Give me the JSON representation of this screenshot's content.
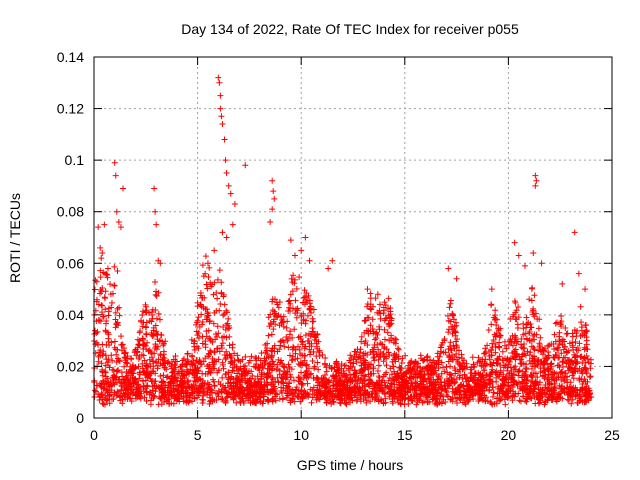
{
  "chart_data": {
    "type": "scatter",
    "title": "Day 134 of 2022, Rate Of TEC Index for receiver p055",
    "xlabel": "GPS time / hours",
    "ylabel": "ROTI / TECUs",
    "xlim": [
      0,
      25
    ],
    "ylim": [
      0,
      0.14
    ],
    "x_ticks": [
      0,
      5,
      10,
      15,
      20,
      25
    ],
    "x_tick_labels": [
      "0",
      "5",
      "10",
      "15",
      "20",
      "25"
    ],
    "y_ticks": [
      0,
      0.02,
      0.04,
      0.06,
      0.08,
      0.1,
      0.12,
      0.14
    ],
    "y_tick_labels": [
      "0",
      "0.02",
      "0.04",
      "0.06",
      "0.08",
      "0.1",
      "0.12",
      "0.14"
    ],
    "grid": true,
    "marker": "+",
    "series": [
      {
        "name": "ROTI",
        "color": "#ff0000",
        "note": "Dense cloud of samples from 0 to 24 h with baseline 0.005-0.02 TECU; representative outliers listed",
        "points": [
          [
            0.2,
            0.074
          ],
          [
            0.3,
            0.066
          ],
          [
            0.35,
            0.062
          ],
          [
            0.4,
            0.064
          ],
          [
            0.5,
            0.075
          ],
          [
            1.0,
            0.099
          ],
          [
            1.05,
            0.094
          ],
          [
            1.1,
            0.08
          ],
          [
            1.2,
            0.076
          ],
          [
            1.3,
            0.074
          ],
          [
            1.4,
            0.089
          ],
          [
            2.9,
            0.089
          ],
          [
            2.95,
            0.08
          ],
          [
            3.0,
            0.075
          ],
          [
            3.1,
            0.061
          ],
          [
            3.2,
            0.06
          ],
          [
            5.3,
            0.055
          ],
          [
            5.5,
            0.06
          ],
          [
            5.8,
            0.065
          ],
          [
            6.0,
            0.132
          ],
          [
            6.05,
            0.13
          ],
          [
            6.1,
            0.125
          ],
          [
            6.1,
            0.12
          ],
          [
            6.15,
            0.117
          ],
          [
            6.2,
            0.114
          ],
          [
            6.3,
            0.108
          ],
          [
            6.35,
            0.1
          ],
          [
            6.4,
            0.095
          ],
          [
            6.5,
            0.09
          ],
          [
            6.6,
            0.087
          ],
          [
            6.2,
            0.072
          ],
          [
            6.4,
            0.07
          ],
          [
            6.7,
            0.075
          ],
          [
            6.8,
            0.083
          ],
          [
            7.3,
            0.098
          ],
          [
            8.6,
            0.092
          ],
          [
            8.65,
            0.088
          ],
          [
            8.7,
            0.085
          ],
          [
            8.6,
            0.081
          ],
          [
            8.5,
            0.076
          ],
          [
            9.5,
            0.069
          ],
          [
            9.7,
            0.063
          ],
          [
            10.2,
            0.07
          ],
          [
            10.0,
            0.065
          ],
          [
            10.4,
            0.061
          ],
          [
            11.3,
            0.058
          ],
          [
            11.5,
            0.061
          ],
          [
            13.2,
            0.05
          ],
          [
            13.7,
            0.048
          ],
          [
            17.1,
            0.058
          ],
          [
            17.5,
            0.054
          ],
          [
            19.2,
            0.05
          ],
          [
            20.3,
            0.068
          ],
          [
            20.5,
            0.063
          ],
          [
            20.8,
            0.059
          ],
          [
            21.2,
            0.064
          ],
          [
            21.3,
            0.094
          ],
          [
            21.35,
            0.092
          ],
          [
            21.3,
            0.09
          ],
          [
            21.6,
            0.06
          ],
          [
            22.6,
            0.052
          ],
          [
            23.2,
            0.072
          ],
          [
            23.4,
            0.056
          ],
          [
            23.7,
            0.05
          ]
        ]
      }
    ]
  }
}
